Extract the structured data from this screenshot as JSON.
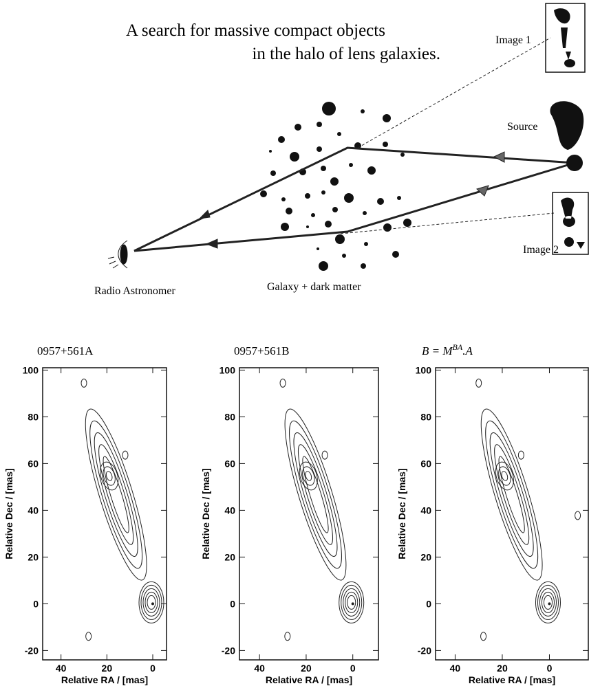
{
  "header": {
    "line1": "A search for massive compact objects",
    "line2": "in the halo of lens galaxies."
  },
  "diagram": {
    "image1": "Image 1",
    "image2": "Image 2",
    "source": "Source",
    "observer": "Radio Astronomer",
    "galaxy": "Galaxy + dark matter"
  },
  "panels": [
    {
      "title": "0957+561A",
      "xlabel": "Relative RA / [mas]",
      "ylabel": "Relative Dec / [mas]",
      "xlim": [
        48,
        -6
      ],
      "ylim": [
        -24,
        101
      ],
      "xticks": [
        40,
        20,
        0
      ],
      "yticks": [
        100,
        80,
        60,
        40,
        20,
        0,
        -20
      ]
    },
    {
      "title": "0957+561B",
      "xlabel": "Relative RA / [mas]",
      "ylabel": "Relative Dec / [mas]",
      "xlim": [
        48.6,
        -11
      ],
      "ylim": [
        -24,
        101
      ],
      "xticks": [
        40,
        20,
        0
      ],
      "yticks": [
        100,
        80,
        60,
        40,
        20,
        0,
        -20
      ]
    },
    {
      "title_parts": [
        "B = M",
        "BA",
        ".A"
      ],
      "xlabel": "Relative RA / [mas]",
      "ylabel": "Relative Dec / [mas]",
      "xlim": [
        48.3,
        -16.5
      ],
      "ylim": [
        -24,
        101
      ],
      "xticks": [
        40,
        20,
        0
      ],
      "yticks": [
        100,
        80,
        60,
        40,
        20,
        0,
        -20
      ]
    }
  ]
}
